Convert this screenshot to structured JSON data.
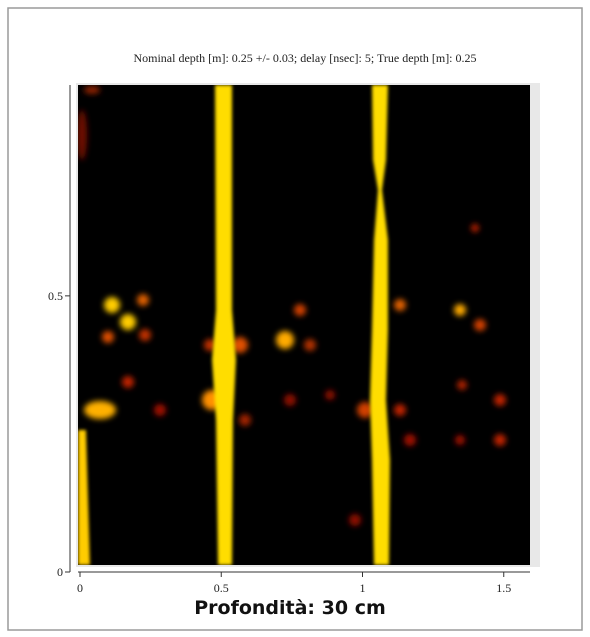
{
  "chart_data": {
    "type": "heatmap",
    "title": "Nominal depth [m]: 0.25 +/- 0.03;   delay [nsec]: 5;   True depth [m]: 0.25",
    "caption": "Profondità: 30 cm",
    "xlim": [
      0,
      1.6
    ],
    "ylim": [
      0,
      0.88
    ],
    "xticks": [
      0,
      0.5,
      1,
      1.5
    ],
    "yticks": [
      0,
      0.5
    ]
  }
}
